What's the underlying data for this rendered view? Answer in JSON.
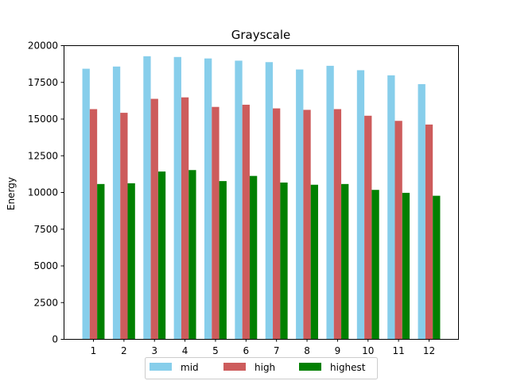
{
  "chart_data": {
    "type": "bar",
    "title": "Grayscale",
    "xlabel": "",
    "ylabel": "Energy",
    "categories": [
      "1",
      "2",
      "3",
      "4",
      "5",
      "6",
      "7",
      "8",
      "9",
      "10",
      "11",
      "12"
    ],
    "series": [
      {
        "name": "mid",
        "color": "#87ceeb",
        "values": [
          18400,
          18550,
          19250,
          19200,
          19100,
          18950,
          18850,
          18350,
          18600,
          18300,
          17950,
          17350
        ]
      },
      {
        "name": "high",
        "color": "#cd5c5c",
        "values": [
          15650,
          15400,
          16350,
          16450,
          15800,
          15950,
          15700,
          15600,
          15650,
          15200,
          14850,
          14600
        ]
      },
      {
        "name": "highest",
        "color": "#008000",
        "values": [
          10550,
          10600,
          11400,
          11500,
          10750,
          11100,
          10650,
          10500,
          10550,
          10150,
          9950,
          9750
        ]
      }
    ],
    "ylim": [
      0,
      20000
    ],
    "yticks": [
      "0",
      "2500",
      "5000",
      "7500",
      "10000",
      "12500",
      "15000",
      "17500",
      "20000"
    ],
    "grid": false,
    "legend_position": "bottom-center"
  }
}
